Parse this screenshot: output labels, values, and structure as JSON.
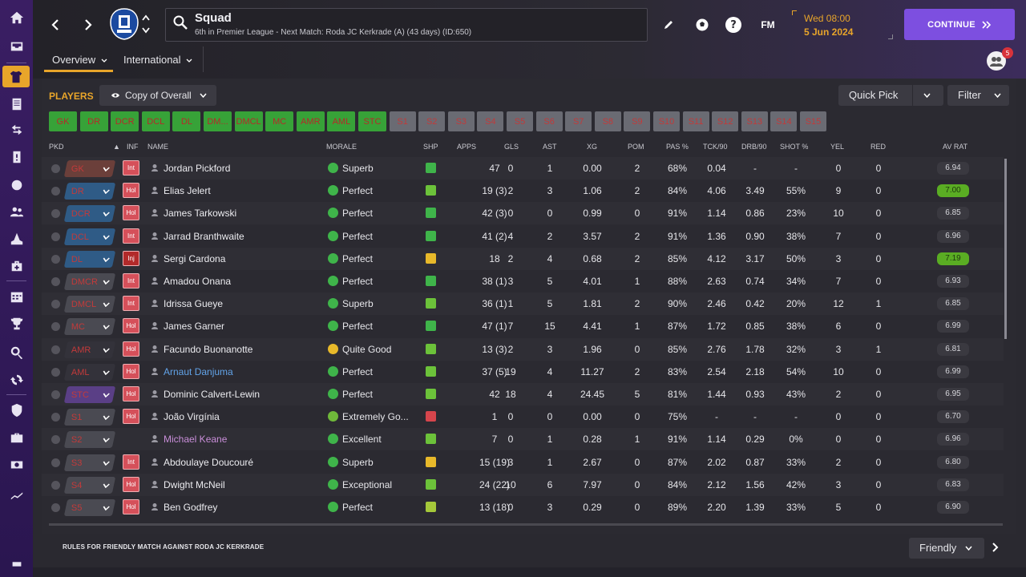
{
  "nav": {
    "items": [
      "home",
      "inbox",
      "squad",
      "reports",
      "transfers",
      "tactics",
      "dynamics",
      "staff",
      "training",
      "medical",
      "schedule",
      "competitions",
      "search",
      "refresh",
      "club",
      "finances",
      "scouting",
      "development"
    ]
  },
  "header": {
    "title": "Squad",
    "subtitle": "6th in Premier League - Next Match: Roda JC Kerkrade (A) (43 days) (ID:650)",
    "date_day": "Wed 08:00",
    "date_date": "5 Jun 2024",
    "continue_label": "CONTINUE",
    "fm_label": "FM",
    "help_label": "?",
    "notifications": "5",
    "tabs": [
      {
        "label": "Overview"
      },
      {
        "label": "International"
      }
    ]
  },
  "toolbar": {
    "players_label": "PLAYERS",
    "view_label": "Copy of Overall",
    "quick_pick_label": "Quick Pick",
    "filter_label": "Filter"
  },
  "positions": [
    "GK",
    "DR",
    "DCR",
    "DCL",
    "DL",
    "DM...",
    "DMCL",
    "MC",
    "AMR",
    "AML",
    "STC",
    "S1",
    "S2",
    "S3",
    "S4",
    "S5",
    "S6",
    "S7",
    "S8",
    "S9",
    "S10",
    "S11",
    "S12",
    "S13",
    "S14",
    "S15"
  ],
  "columns": {
    "pkd": "PKD",
    "inf": "INF",
    "name": "NAME",
    "morale": "MORALE",
    "shp": "SHP",
    "apps": "APPS",
    "gls": "GLS",
    "ast": "AST",
    "xg": "XG",
    "pom": "POM",
    "pas": "PAS %",
    "tck": "TCK/90",
    "drb": "DRB/90",
    "shot": "SHOT %",
    "yel": "YEL",
    "red": "RED",
    "avrat": "AV RAT"
  },
  "colors": {
    "accent": "#e8a52a",
    "continue": "#7d4fe0",
    "green": "#37a238",
    "rating_high": "#5aad23"
  },
  "players": [
    {
      "pkd": "GK",
      "pkd_color": "#6b3f3a",
      "inf": "Int",
      "name": "Jordan Pickford",
      "name_style": "normal",
      "morale": "Superb",
      "shp": "good",
      "apps": "47",
      "gls": "0",
      "ast": "1",
      "xg": "0.00",
      "pom": "2",
      "pas": "68%",
      "tck": "0.04",
      "drb": "-",
      "shot": "-",
      "yel": "0",
      "red": "0",
      "avrat": "6.94",
      "hi": false
    },
    {
      "pkd": "DR",
      "pkd_color": "#2f5b86",
      "inf": "Hol",
      "name": "Elias Jelert",
      "name_style": "normal",
      "morale": "Perfect",
      "shp": "ok",
      "apps": "19 (3)",
      "gls": "2",
      "ast": "3",
      "xg": "1.06",
      "pom": "2",
      "pas": "84%",
      "tck": "4.06",
      "drb": "3.49",
      "shot": "55%",
      "yel": "9",
      "red": "0",
      "avrat": "7.00",
      "hi": true
    },
    {
      "pkd": "DCR",
      "pkd_color": "#2f5b86",
      "inf": "Hol",
      "name": "James Tarkowski",
      "name_style": "normal",
      "morale": "Perfect",
      "shp": "good",
      "apps": "42 (3)",
      "gls": "0",
      "ast": "0",
      "xg": "0.99",
      "pom": "0",
      "pas": "91%",
      "tck": "1.14",
      "drb": "0.86",
      "shot": "23%",
      "yel": "10",
      "red": "0",
      "avrat": "6.85",
      "hi": false
    },
    {
      "pkd": "DCL",
      "pkd_color": "#2f5b86",
      "inf": "Int",
      "name": "Jarrad Branthwaite",
      "name_style": "normal",
      "morale": "Perfect",
      "shp": "good",
      "apps": "41 (2)",
      "gls": "4",
      "ast": "2",
      "xg": "3.57",
      "pom": "2",
      "pas": "91%",
      "tck": "1.36",
      "drb": "0.90",
      "shot": "38%",
      "yel": "7",
      "red": "0",
      "avrat": "6.96",
      "hi": false
    },
    {
      "pkd": "DL",
      "pkd_color": "#2f5b86",
      "inf": "Inj",
      "name": "Sergi Cardona",
      "name_style": "normal",
      "morale": "Perfect",
      "shp": "warn",
      "apps": "18",
      "gls": "2",
      "ast": "4",
      "xg": "0.68",
      "pom": "2",
      "pas": "85%",
      "tck": "4.12",
      "drb": "3.17",
      "shot": "50%",
      "yel": "3",
      "red": "0",
      "avrat": "7.19",
      "hi": true
    },
    {
      "pkd": "DMCR",
      "pkd_color": "#4a4a52",
      "inf": "Int",
      "name": "Amadou Onana",
      "name_style": "normal",
      "morale": "Perfect",
      "shp": "good",
      "apps": "38 (1)",
      "gls": "3",
      "ast": "5",
      "xg": "4.01",
      "pom": "1",
      "pas": "88%",
      "tck": "2.63",
      "drb": "0.74",
      "shot": "34%",
      "yel": "7",
      "red": "0",
      "avrat": "6.93",
      "hi": false
    },
    {
      "pkd": "DMCL",
      "pkd_color": "#4a4a52",
      "inf": "Int",
      "name": "Idrissa Gueye",
      "name_style": "normal",
      "morale": "Superb",
      "shp": "ok",
      "apps": "36 (1)",
      "gls": "1",
      "ast": "5",
      "xg": "1.81",
      "pom": "2",
      "pas": "90%",
      "tck": "2.46",
      "drb": "0.42",
      "shot": "20%",
      "yel": "12",
      "red": "1",
      "avrat": "6.85",
      "hi": false
    },
    {
      "pkd": "MC",
      "pkd_color": "#4a4a52",
      "inf": "Hol",
      "name": "James Garner",
      "name_style": "normal",
      "morale": "Perfect",
      "shp": "good",
      "apps": "47 (1)",
      "gls": "7",
      "ast": "15",
      "xg": "4.41",
      "pom": "1",
      "pas": "87%",
      "tck": "1.72",
      "drb": "0.85",
      "shot": "38%",
      "yel": "6",
      "red": "0",
      "avrat": "6.99",
      "hi": false
    },
    {
      "pkd": "AMR",
      "pkd_color": "#33323a",
      "inf": "Hol",
      "name": "Facundo Buonanotte",
      "name_style": "normal",
      "morale": "Quite Good",
      "shp": "ok",
      "apps": "13 (3)",
      "gls": "2",
      "ast": "3",
      "xg": "1.96",
      "pom": "0",
      "pas": "85%",
      "tck": "2.76",
      "drb": "1.78",
      "shot": "32%",
      "yel": "3",
      "red": "1",
      "avrat": "6.81",
      "hi": false
    },
    {
      "pkd": "AML",
      "pkd_color": "#33323a",
      "inf": "Hol",
      "name": "Arnaut Danjuma",
      "name_style": "link",
      "morale": "Perfect",
      "shp": "ok",
      "apps": "37 (5)",
      "gls": "19",
      "ast": "4",
      "xg": "11.27",
      "pom": "2",
      "pas": "83%",
      "tck": "2.54",
      "drb": "2.18",
      "shot": "54%",
      "yel": "10",
      "red": "0",
      "avrat": "6.99",
      "hi": false
    },
    {
      "pkd": "STC",
      "pkd_color": "#5a3f86",
      "inf": "Hol",
      "name": "Dominic Calvert-Lewin",
      "name_style": "normal",
      "morale": "Perfect",
      "shp": "ok",
      "apps": "42",
      "gls": "18",
      "ast": "4",
      "xg": "24.45",
      "pom": "5",
      "pas": "81%",
      "tck": "1.44",
      "drb": "0.93",
      "shot": "43%",
      "yel": "2",
      "red": "0",
      "avrat": "6.95",
      "hi": false
    },
    {
      "pkd": "S1",
      "pkd_color": "#4a4a52",
      "inf": "Hol",
      "name": "João Virgínia",
      "name_style": "normal",
      "morale": "Extremely Go...",
      "shp": "bad",
      "apps": "1",
      "gls": "0",
      "ast": "0",
      "xg": "0.00",
      "pom": "0",
      "pas": "75%",
      "tck": "-",
      "drb": "-",
      "shot": "-",
      "yel": "0",
      "red": "0",
      "avrat": "6.70",
      "hi": false
    },
    {
      "pkd": "S2",
      "pkd_color": "#4a4a52",
      "inf": "",
      "name": "Michael Keane",
      "name_style": "loan",
      "morale": "Excellent",
      "shp": "ok",
      "apps": "7",
      "gls": "0",
      "ast": "1",
      "xg": "0.28",
      "pom": "1",
      "pas": "91%",
      "tck": "1.14",
      "drb": "0.29",
      "shot": "0%",
      "yel": "0",
      "red": "0",
      "avrat": "6.96",
      "hi": false
    },
    {
      "pkd": "S3",
      "pkd_color": "#4a4a52",
      "inf": "Int",
      "name": "Abdoulaye Doucouré",
      "name_style": "normal",
      "morale": "Superb",
      "shp": "warn",
      "apps": "15 (19)",
      "gls": "3",
      "ast": "1",
      "xg": "2.67",
      "pom": "0",
      "pas": "87%",
      "tck": "2.02",
      "drb": "0.87",
      "shot": "33%",
      "yel": "2",
      "red": "0",
      "avrat": "6.80",
      "hi": false
    },
    {
      "pkd": "S4",
      "pkd_color": "#4a4a52",
      "inf": "Hol",
      "name": "Dwight McNeil",
      "name_style": "normal",
      "morale": "Exceptional",
      "shp": "ok",
      "apps": "24 (22)",
      "gls": "10",
      "ast": "6",
      "xg": "7.97",
      "pom": "0",
      "pas": "84%",
      "tck": "2.12",
      "drb": "1.56",
      "shot": "42%",
      "yel": "3",
      "red": "0",
      "avrat": "6.83",
      "hi": false
    },
    {
      "pkd": "S5",
      "pkd_color": "#4a4a52",
      "inf": "Hol",
      "name": "Ben Godfrey",
      "name_style": "normal",
      "morale": "Perfect",
      "shp": "ok2",
      "apps": "13 (18)",
      "gls": "0",
      "ast": "3",
      "xg": "0.29",
      "pom": "0",
      "pas": "89%",
      "tck": "2.20",
      "drb": "1.39",
      "shot": "33%",
      "yel": "5",
      "red": "0",
      "avrat": "6.90",
      "hi": false
    }
  ],
  "footer": {
    "rules_label": "RULES FOR FRIENDLY MATCH AGAINST RODA JC KERKRADE",
    "match_type": "Friendly"
  }
}
